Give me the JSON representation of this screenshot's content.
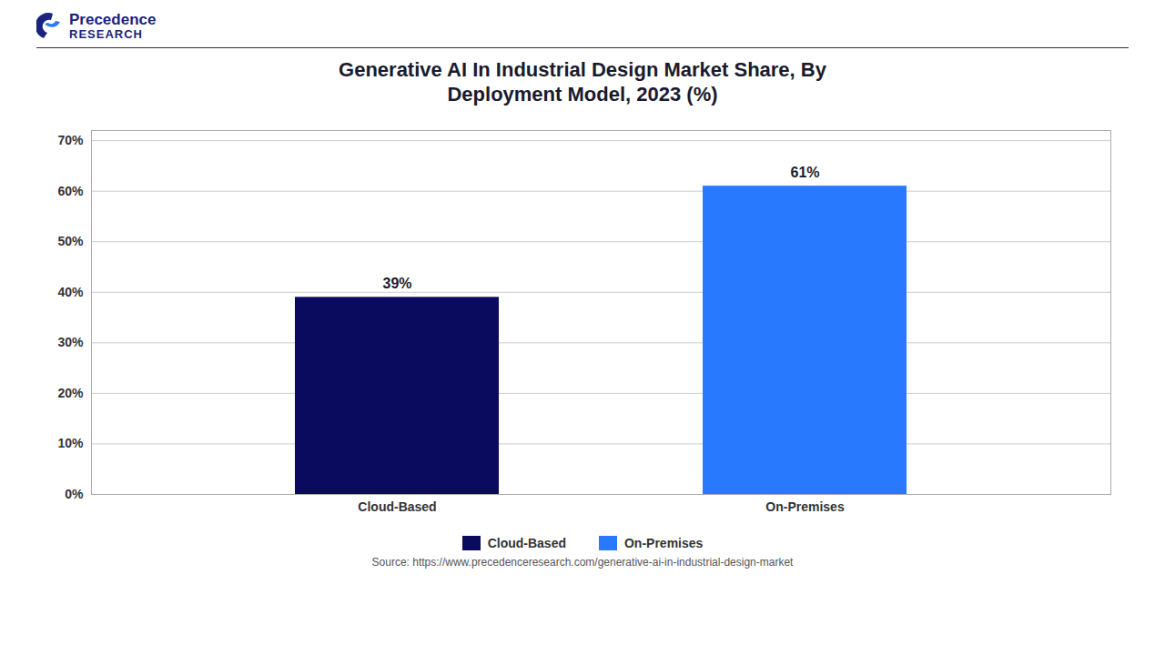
{
  "chart_data": {
    "type": "bar",
    "title": "Generative AI In Industrial Design Market Share, By\nDeployment Model, 2023 (%)",
    "categories": [
      "Cloud-Based",
      "On-Premises"
    ],
    "values": [
      39,
      61
    ],
    "value_labels": [
      "39%",
      "61%"
    ],
    "data_labels": true,
    "colors": [
      "#0a0a5e",
      "#2979ff"
    ],
    "ylim": [
      0,
      72
    ],
    "yticks": [
      {
        "value": 0,
        "label": "0%"
      },
      {
        "value": 10,
        "label": "10%"
      },
      {
        "value": 20,
        "label": "20%"
      },
      {
        "value": 30,
        "label": "30%"
      },
      {
        "value": 40,
        "label": "40%"
      },
      {
        "value": 50,
        "label": "50%"
      },
      {
        "value": 60,
        "label": "60%"
      },
      {
        "value": 70,
        "label": "70%"
      }
    ],
    "grid": true,
    "legend": "bottom",
    "caption": "Source: https://www.precedenceresearch.com/generative-ai-in-industrial-design-market",
    "annotations": [
      "Precedence",
      "RESEARCH"
    ]
  }
}
